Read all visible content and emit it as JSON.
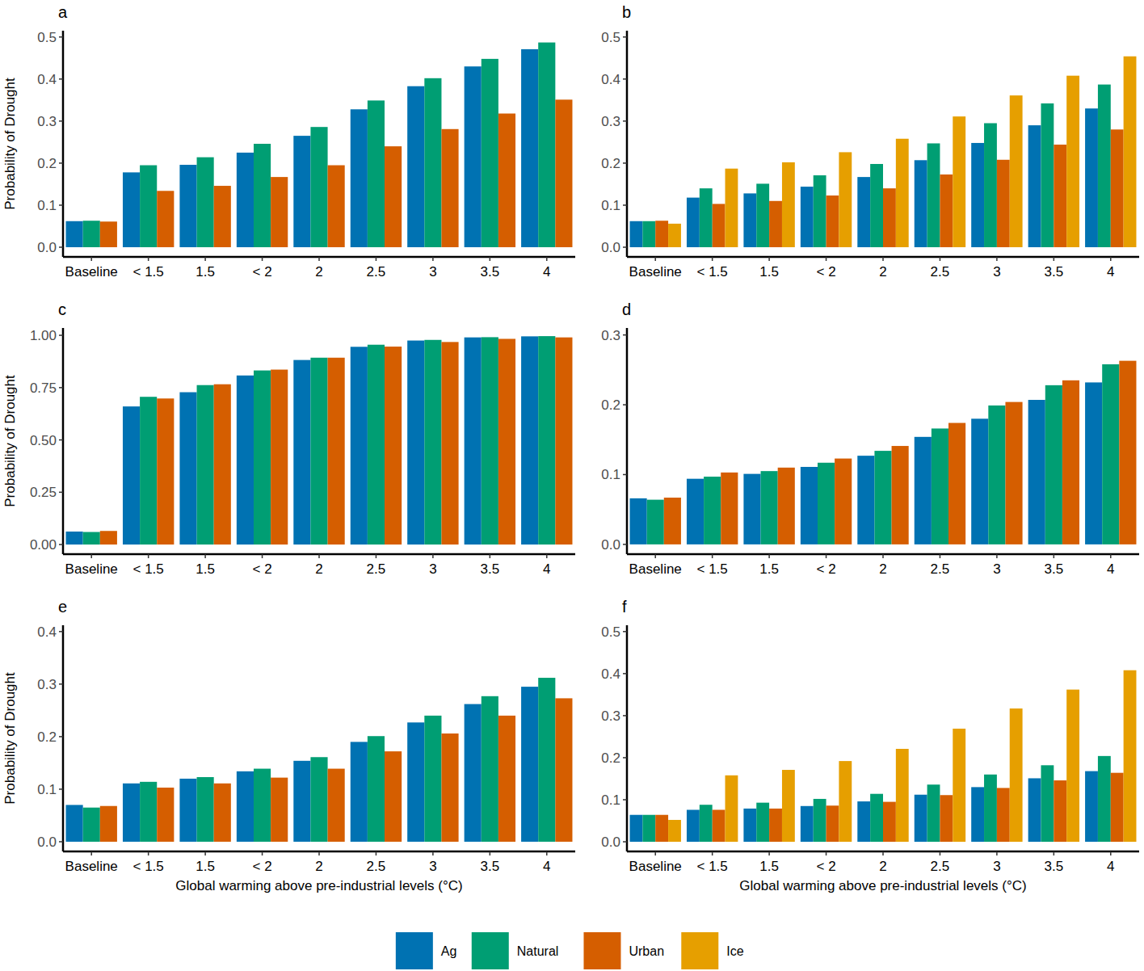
{
  "chart_data": [
    {
      "type": "bar",
      "title": "a",
      "y_label": "Probability of Drought",
      "categories": [
        "Baseline",
        "< 1.5",
        "1.5",
        "< 2",
        "2",
        "2.5",
        "3",
        "3.5",
        "4"
      ],
      "ylim": [
        -0.023,
        0.515
      ],
      "yticks": [
        {
          "value": 0,
          "label": "0.0"
        },
        0.1,
        0.2,
        0.3,
        0.4,
        0.5
      ],
      "series": [
        {
          "name": "Ag",
          "color": "#0072B2",
          "values": [
            0.062,
            0.178,
            0.196,
            0.225,
            0.265,
            0.328,
            0.383,
            0.43,
            0.471
          ]
        },
        {
          "name": "Natural",
          "color": "#009E73",
          "values": [
            0.063,
            0.195,
            0.214,
            0.246,
            0.286,
            0.349,
            0.402,
            0.448,
            0.487
          ]
        },
        {
          "name": "Urban",
          "color": "#D55E00",
          "values": [
            0.061,
            0.134,
            0.146,
            0.167,
            0.195,
            0.24,
            0.281,
            0.318,
            0.351
          ]
        }
      ]
    },
    {
      "type": "bar",
      "title": "b",
      "categories": [
        "Baseline",
        "< 1.5",
        "1.5",
        "< 2",
        "2",
        "2.5",
        "3",
        "3.5",
        "4"
      ],
      "ylim": [
        -0.023,
        0.515
      ],
      "yticks": [
        {
          "value": 0,
          "label": "0.0"
        },
        0.1,
        0.2,
        0.3,
        0.4,
        0.5
      ],
      "series": [
        {
          "name": "Ag",
          "color": "#0072B2",
          "values": [
            0.062,
            0.118,
            0.128,
            0.144,
            0.167,
            0.207,
            0.248,
            0.29,
            0.33
          ]
        },
        {
          "name": "Natural",
          "color": "#009E73",
          "values": [
            0.062,
            0.14,
            0.151,
            0.171,
            0.198,
            0.247,
            0.295,
            0.342,
            0.387
          ]
        },
        {
          "name": "Urban",
          "color": "#D55E00",
          "values": [
            0.063,
            0.103,
            0.11,
            0.123,
            0.14,
            0.173,
            0.208,
            0.244,
            0.28
          ]
        },
        {
          "name": "Ice",
          "color": "#E69F00",
          "values": [
            0.056,
            0.187,
            0.202,
            0.226,
            0.258,
            0.311,
            0.361,
            0.408,
            0.454
          ]
        }
      ]
    },
    {
      "type": "bar",
      "title": "c",
      "y_label": "Probability of Drought",
      "categories": [
        "Baseline",
        "< 1.5",
        "1.5",
        "< 2",
        "2",
        "2.5",
        "3",
        "3.5",
        "4"
      ],
      "ylim": [
        -0.046,
        1.035
      ],
      "yticks": [
        {
          "value": 0,
          "label": "0.00"
        },
        0.25,
        {
          "value": 0.5,
          "label": "0.50"
        },
        0.75,
        {
          "value": 1,
          "label": "1.00"
        }
      ],
      "series": [
        {
          "name": "Ag",
          "color": "#0072B2",
          "values": [
            0.062,
            0.66,
            0.728,
            0.808,
            0.882,
            0.945,
            0.975,
            0.99,
            0.995
          ]
        },
        {
          "name": "Natural",
          "color": "#009E73",
          "values": [
            0.06,
            0.706,
            0.762,
            0.832,
            0.893,
            0.955,
            0.978,
            0.991,
            0.996
          ]
        },
        {
          "name": "Urban",
          "color": "#D55E00",
          "values": [
            0.065,
            0.698,
            0.766,
            0.836,
            0.893,
            0.946,
            0.968,
            0.983,
            0.99
          ]
        }
      ]
    },
    {
      "type": "bar",
      "title": "d",
      "categories": [
        "Baseline",
        "< 1.5",
        "1.5",
        "< 2",
        "2",
        "2.5",
        "3",
        "3.5",
        "4"
      ],
      "ylim": [
        -0.014,
        0.31
      ],
      "yticks": [
        {
          "value": 0,
          "label": "0.0"
        },
        0.1,
        0.2,
        0.3
      ],
      "series": [
        {
          "name": "Ag",
          "color": "#0072B2",
          "values": [
            0.066,
            0.094,
            0.101,
            0.111,
            0.127,
            0.154,
            0.18,
            0.207,
            0.232
          ]
        },
        {
          "name": "Natural",
          "color": "#009E73",
          "values": [
            0.064,
            0.097,
            0.105,
            0.117,
            0.134,
            0.166,
            0.199,
            0.228,
            0.258
          ]
        },
        {
          "name": "Urban",
          "color": "#D55E00",
          "values": [
            0.067,
            0.103,
            0.11,
            0.123,
            0.141,
            0.174,
            0.204,
            0.235,
            0.263
          ]
        }
      ]
    },
    {
      "type": "bar",
      "title": "e",
      "y_label": "Probability of Drought",
      "x_label": "Global warming above pre-industrial levels (°C)",
      "categories": [
        "Baseline",
        "< 1.5",
        "1.5",
        "< 2",
        "2",
        "2.5",
        "3",
        "3.5",
        "4"
      ],
      "ylim": [
        -0.0185,
        0.412
      ],
      "yticks": [
        {
          "value": 0,
          "label": "0.0"
        },
        0.1,
        0.2,
        0.3,
        0.4
      ],
      "series": [
        {
          "name": "Ag",
          "color": "#0072B2",
          "values": [
            0.07,
            0.111,
            0.12,
            0.134,
            0.154,
            0.19,
            0.227,
            0.262,
            0.295
          ]
        },
        {
          "name": "Natural",
          "color": "#009E73",
          "values": [
            0.065,
            0.114,
            0.123,
            0.139,
            0.161,
            0.201,
            0.24,
            0.277,
            0.312
          ]
        },
        {
          "name": "Urban",
          "color": "#D55E00",
          "values": [
            0.068,
            0.103,
            0.111,
            0.122,
            0.139,
            0.172,
            0.206,
            0.24,
            0.273
          ]
        }
      ]
    },
    {
      "type": "bar",
      "title": "f",
      "x_label": "Global warming above pre-industrial levels (°C)",
      "legend": "bottom",
      "categories": [
        "Baseline",
        "< 1.5",
        "1.5",
        "< 2",
        "2",
        "2.5",
        "3",
        "3.5",
        "4"
      ],
      "ylim": [
        -0.023,
        0.515
      ],
      "yticks": [
        {
          "value": 0,
          "label": "0.0"
        },
        0.1,
        0.2,
        0.3,
        0.4,
        0.5
      ],
      "series": [
        {
          "name": "Ag",
          "color": "#0072B2",
          "values": [
            0.064,
            0.076,
            0.079,
            0.085,
            0.096,
            0.112,
            0.13,
            0.151,
            0.168
          ]
        },
        {
          "name": "Natural",
          "color": "#009E73",
          "values": [
            0.064,
            0.088,
            0.093,
            0.102,
            0.114,
            0.136,
            0.16,
            0.182,
            0.204
          ]
        },
        {
          "name": "Urban",
          "color": "#D55E00",
          "values": [
            0.064,
            0.076,
            0.079,
            0.086,
            0.095,
            0.111,
            0.128,
            0.146,
            0.164
          ]
        },
        {
          "name": "Ice",
          "color": "#E69F00",
          "values": [
            0.052,
            0.158,
            0.171,
            0.192,
            0.221,
            0.269,
            0.317,
            0.362,
            0.408
          ]
        }
      ]
    }
  ]
}
